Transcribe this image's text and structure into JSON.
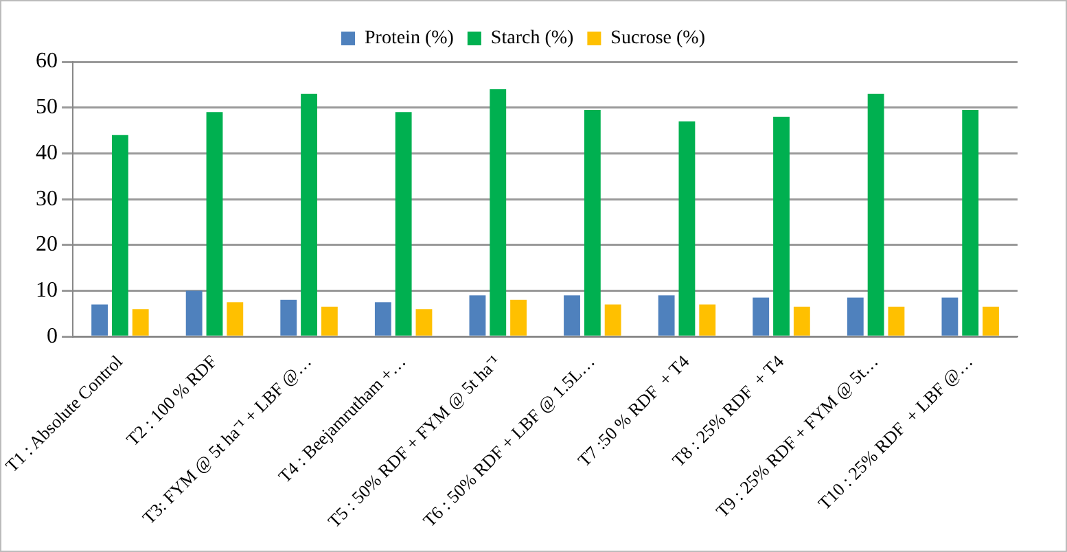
{
  "chart_data": {
    "type": "bar",
    "categories": [
      "T1 : Absolute Control",
      "T2 : 100 % RDF",
      "T3: FYM @ 5t ha⁻¹ + LBF @…",
      "T4 : Beejamrutham +…",
      "T5 : 50% RDF + FYM @ 5t ha⁻¹",
      "T6 : 50% RDF + LBF @ 1.5L…",
      "T7 :50 % RDF  + T4",
      "T8 : 25% RDF  + T4",
      "T9 : 25% RDF + FYM @ 5t…",
      "T10 : 25% RDF  + LBF @…"
    ],
    "series": [
      {
        "name": "Protein (%)",
        "color": "#4f81bd",
        "values": [
          7,
          10,
          8,
          7.5,
          9,
          9,
          9,
          8.5,
          8.5,
          8.5
        ]
      },
      {
        "name": "Starch (%)",
        "color": "#00b050",
        "values": [
          44,
          49,
          53,
          49,
          54,
          49.5,
          47,
          48,
          53,
          49.5
        ]
      },
      {
        "name": "Sucrose (%)",
        "color": "#ffc000",
        "values": [
          6,
          7.5,
          6.5,
          6,
          8,
          7,
          7,
          6.5,
          6.5,
          6.5
        ]
      }
    ],
    "ylim": [
      0,
      60
    ],
    "yticks": [
      0,
      10,
      20,
      30,
      40,
      50,
      60
    ],
    "grid": "y",
    "legend": "top"
  }
}
